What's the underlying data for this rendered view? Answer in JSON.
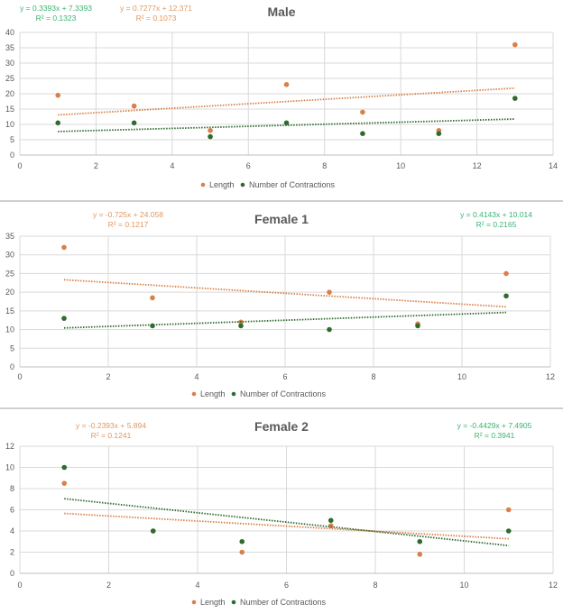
{
  "colors": {
    "length": "#d9804a",
    "contractions": "#2e6b2e",
    "eq_length": "#e0975f",
    "eq_contractions": "#3cb371",
    "grid": "#d9d9d9"
  },
  "chart_data": [
    {
      "type": "scatter",
      "title": "Male",
      "xlim": [
        0,
        14
      ],
      "ylim": [
        0,
        40
      ],
      "xticks": [
        0,
        2,
        4,
        6,
        8,
        10,
        12,
        14
      ],
      "yticks": [
        0,
        5,
        10,
        15,
        20,
        25,
        30,
        35,
        40
      ],
      "grid": true,
      "legend_position": "bottom",
      "series": [
        {
          "name": "Length",
          "x": [
            1,
            3,
            5,
            7,
            9,
            11,
            13
          ],
          "y": [
            19.5,
            16,
            8,
            23,
            14,
            8,
            36
          ],
          "trendline": {
            "slope": 0.7277,
            "intercept": 12.371,
            "x_range": [
              1,
              13
            ],
            "equation": "y = 0.7277x + 12.371",
            "r2": "R² = 0.1073"
          }
        },
        {
          "name": "Number of Contractions",
          "x": [
            1,
            3,
            5,
            7,
            9,
            11,
            13
          ],
          "y": [
            10.5,
            10.5,
            6,
            10.5,
            7,
            7,
            18.5
          ],
          "trendline": {
            "slope": 0.3393,
            "intercept": 7.3393,
            "x_range": [
              1,
              13
            ],
            "equation": "y = 0.3393x + 7.3393",
            "r2": "R² = 0.1323"
          }
        }
      ]
    },
    {
      "type": "scatter",
      "title": "Female 1",
      "xlim": [
        0,
        12
      ],
      "ylim": [
        0,
        35
      ],
      "xticks": [
        0,
        2,
        4,
        6,
        8,
        10,
        12
      ],
      "yticks": [
        0,
        5,
        10,
        15,
        20,
        25,
        30,
        35
      ],
      "grid": true,
      "legend_position": "bottom",
      "series": [
        {
          "name": "Length",
          "x": [
            1,
            3,
            5,
            7,
            9,
            11
          ],
          "y": [
            32,
            18.5,
            12,
            20,
            11.5,
            25
          ],
          "trendline": {
            "slope": -0.725,
            "intercept": 24.058,
            "x_range": [
              1,
              11
            ],
            "equation": "y = -0.725x + 24.058",
            "r2": "R² = 0.1217"
          }
        },
        {
          "name": "Number of Contractions",
          "x": [
            1,
            3,
            5,
            7,
            9,
            11
          ],
          "y": [
            13,
            11,
            11,
            10,
            11,
            19
          ],
          "trendline": {
            "slope": 0.4143,
            "intercept": 10.014,
            "x_range": [
              1,
              11
            ],
            "equation": "y = 0.4143x + 10.014",
            "r2": "R² = 0.2165"
          }
        }
      ]
    },
    {
      "type": "scatter",
      "title": "Female 2",
      "xlim": [
        0,
        12
      ],
      "ylim": [
        0,
        12
      ],
      "xticks": [
        0,
        2,
        4,
        6,
        8,
        10,
        12
      ],
      "yticks": [
        0,
        2,
        4,
        6,
        8,
        10,
        12
      ],
      "grid": true,
      "legend_position": "bottom",
      "series": [
        {
          "name": "Length",
          "x": [
            1,
            3,
            5,
            7,
            9,
            11
          ],
          "y": [
            8.5,
            4,
            2,
            4.5,
            1.8,
            6
          ],
          "trendline": {
            "slope": -0.2393,
            "intercept": 5.894,
            "x_range": [
              1,
              11
            ],
            "equation": "y = -0.2393x + 5.894",
            "r2": "R² = 0.1241"
          }
        },
        {
          "name": "Number of Contractions",
          "x": [
            1,
            3,
            5,
            7,
            9,
            11
          ],
          "y": [
            10,
            4,
            3,
            5,
            3,
            4
          ],
          "trendline": {
            "slope": -0.4429,
            "intercept": 7.4905,
            "x_range": [
              1,
              11
            ],
            "equation": "y = -0.4429x + 7.4905",
            "r2": "R² = 0.3941"
          }
        }
      ]
    }
  ]
}
